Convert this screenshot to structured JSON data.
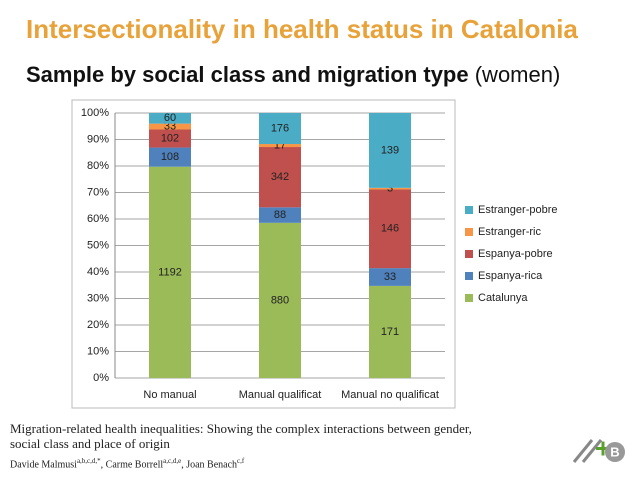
{
  "header": {
    "title": "Intersectionality in health status in Catalonia",
    "subtitle": "Sample by social class and migration type",
    "subtitle_note": "(women)"
  },
  "chart_data": {
    "type": "bar",
    "stack": "percent",
    "categories": [
      "No manual",
      "Manual qualificat",
      "Manual no qualificat"
    ],
    "series": [
      {
        "name": "Catalunya",
        "color": "#9bbb59",
        "values": [
          1192,
          880,
          171
        ]
      },
      {
        "name": "Espanya-rica",
        "color": "#4f81bd",
        "values": [
          108,
          88,
          33
        ]
      },
      {
        "name": "Espanya-pobre",
        "color": "#c0504d",
        "values": [
          102,
          342,
          146
        ]
      },
      {
        "name": "Estranger-ric",
        "color": "#f79646",
        "values": [
          33,
          17,
          3
        ]
      },
      {
        "name": "Estranger-pobre",
        "color": "#4bacc6",
        "values": [
          60,
          176,
          139
        ]
      }
    ],
    "ylim": [
      0,
      100
    ],
    "yticks": [
      {
        "value": 0,
        "label": "0%"
      },
      {
        "value": 10,
        "label": "10%"
      },
      {
        "value": 20,
        "label": "20%"
      },
      {
        "value": 30,
        "label": "30%"
      },
      {
        "value": 40,
        "label": "40%"
      },
      {
        "value": 50,
        "label": "50%"
      },
      {
        "value": 60,
        "label": "60%"
      },
      {
        "value": 70,
        "label": "70%"
      },
      {
        "value": 80,
        "label": "80%"
      },
      {
        "value": 90,
        "label": "90%"
      },
      {
        "value": 100,
        "label": "100%"
      }
    ],
    "grid": true,
    "legend": "right"
  },
  "citation": {
    "title": "Migration-related health inequalities: Showing the complex interactions between gender, social class and place of origin",
    "authors": [
      {
        "name": "Davide Malmusi",
        "sup": "a,b,c,d,*"
      },
      {
        "name": "Carme Borrell",
        "sup": "a,c,d,e"
      },
      {
        "name": "Joan Benach",
        "sup": "c,f"
      }
    ]
  }
}
